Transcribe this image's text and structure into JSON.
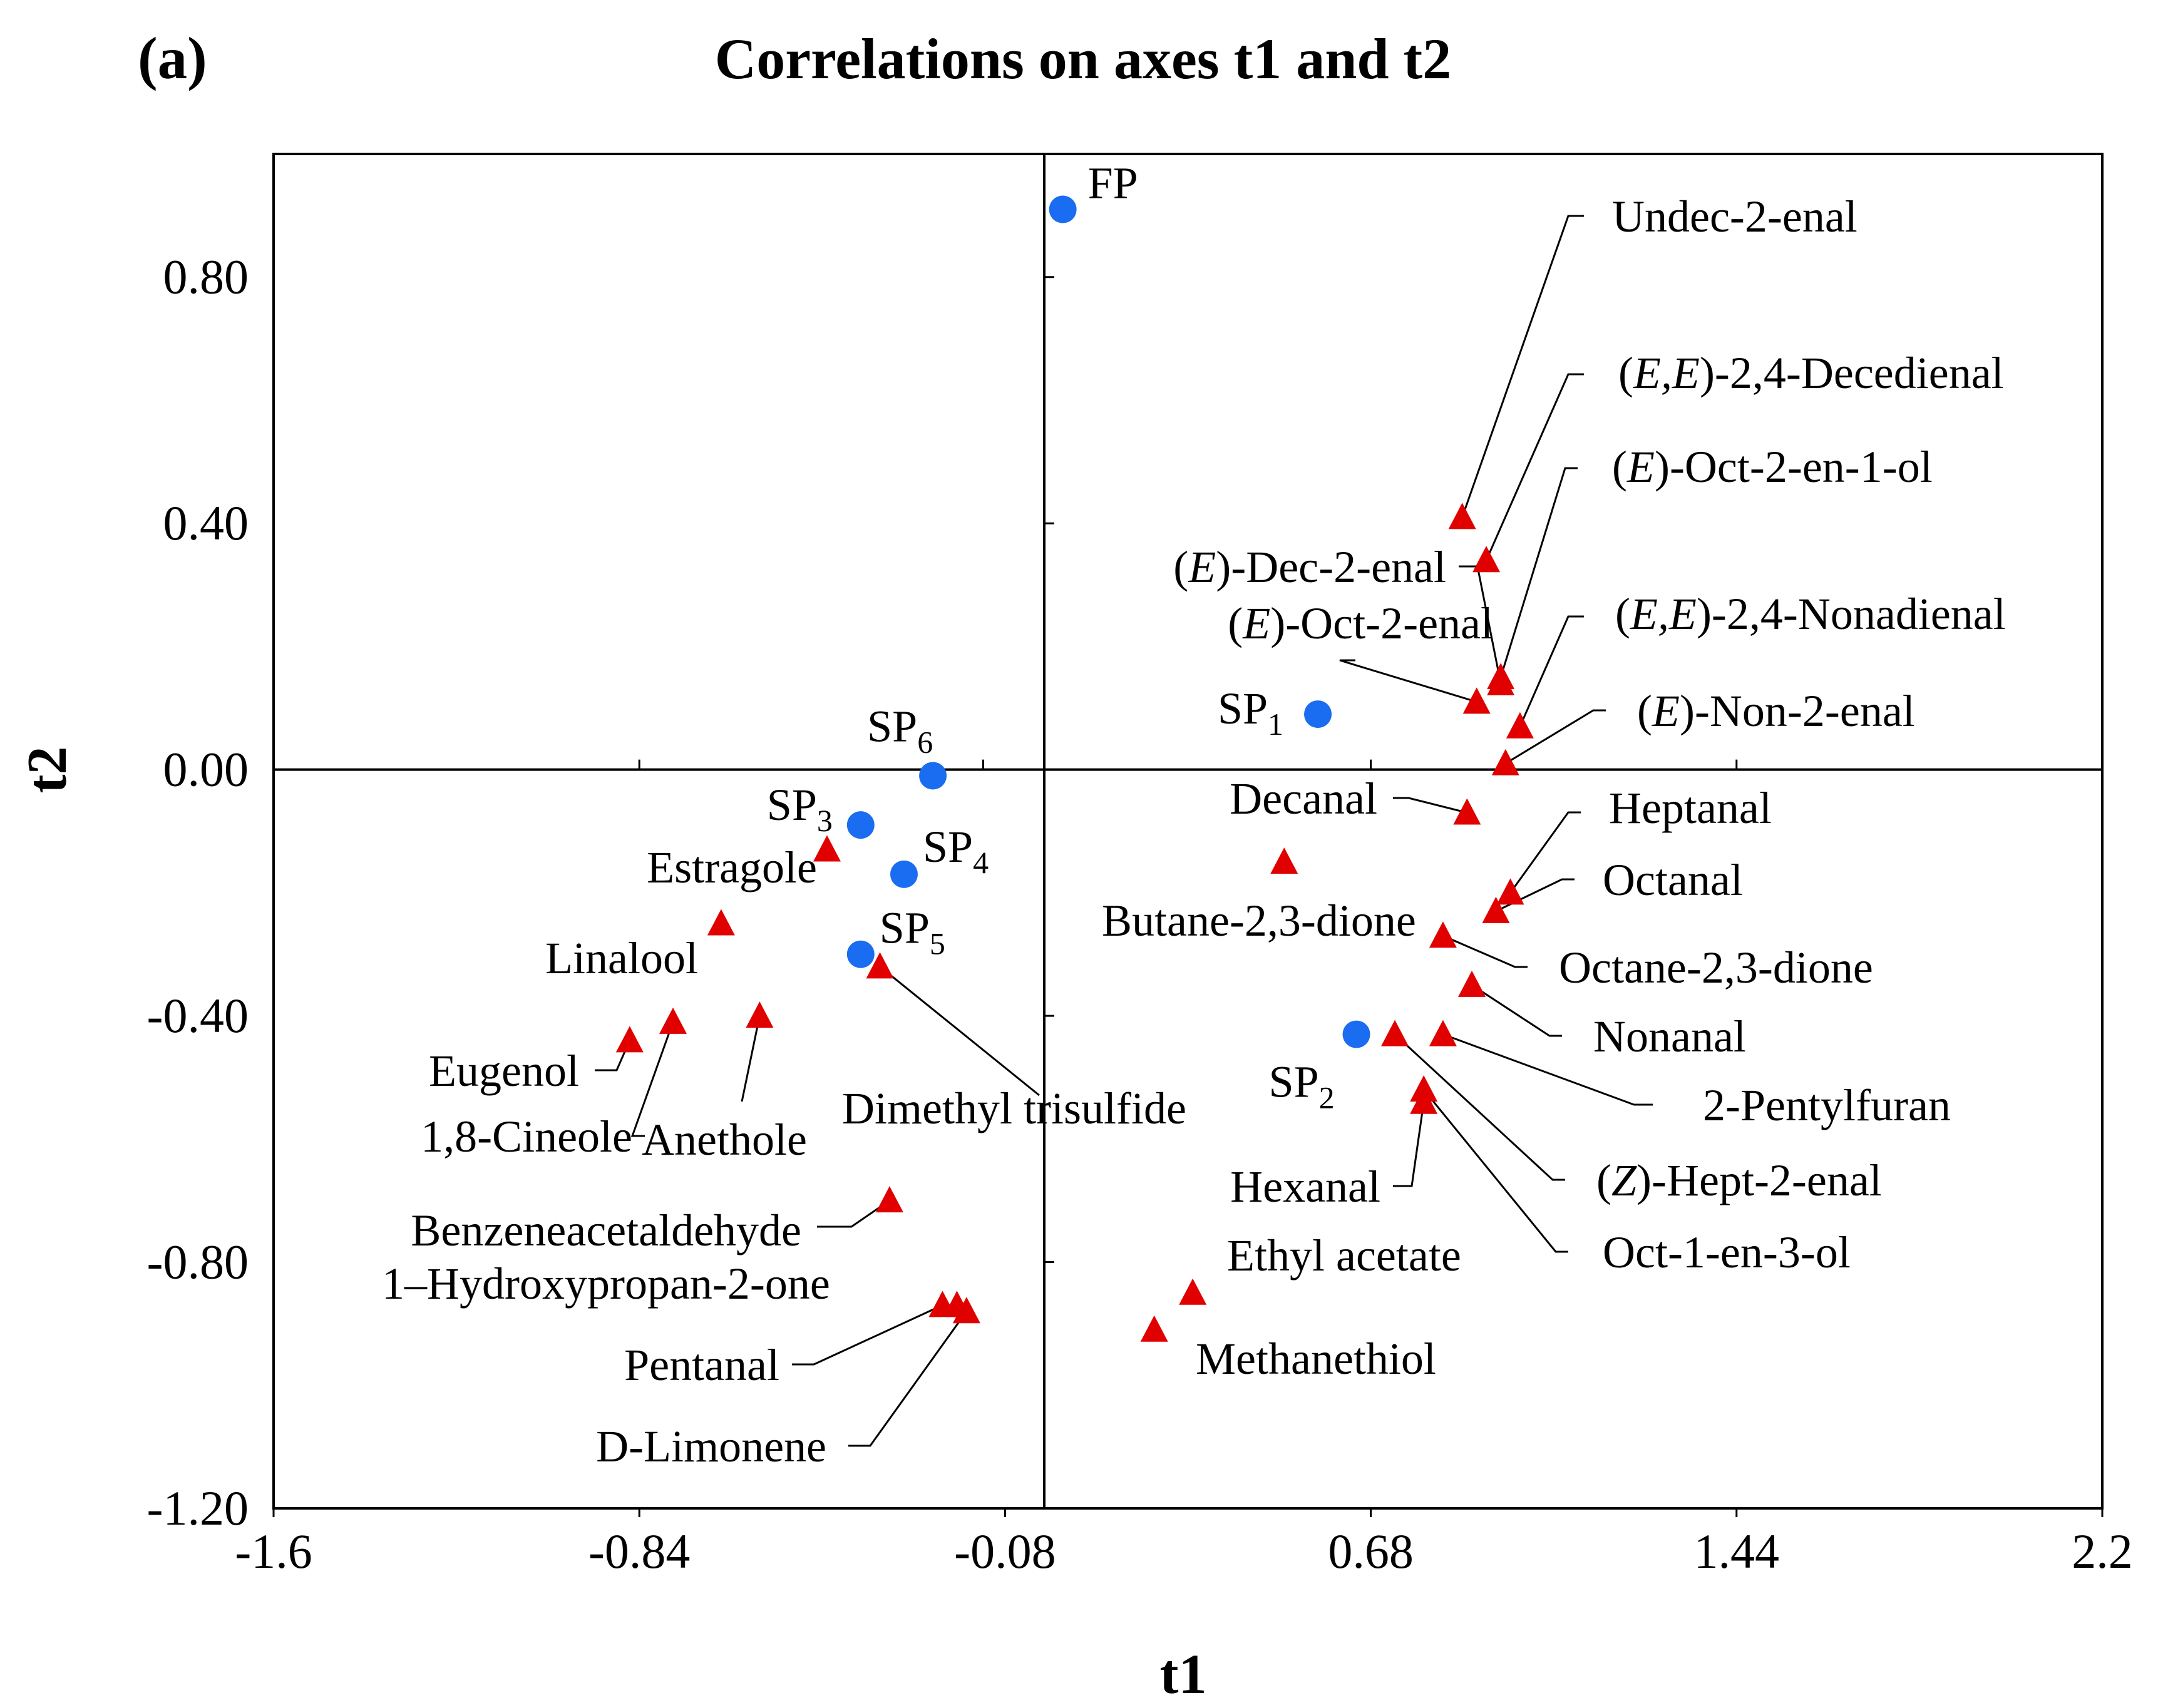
{
  "panel_label": "(a)",
  "chart_data": {
    "type": "scatter",
    "title": "Correlations on axes t1 and t2",
    "xlabel": "t1",
    "ylabel": "t2",
    "xlim": [
      -1.6,
      2.2
    ],
    "ylim": [
      -1.2,
      1.0
    ],
    "xticks": [
      -1.6,
      -0.84,
      -0.08,
      0.68,
      1.44,
      2.2
    ],
    "yticks": [
      0.8,
      0.4,
      0.0,
      -0.4,
      -0.8,
      -1.2
    ],
    "xtick_labels": [
      "-1.6",
      "-0.84",
      "-0.08",
      "0.68",
      "1.44",
      "2.2"
    ],
    "ytick_labels": [
      "0.80",
      "0.40",
      "0.00",
      "-0.40",
      "-0.80",
      "-1.20"
    ],
    "grid": false,
    "colors": {
      "samples": "#1a6cf0",
      "compounds": "#e00000"
    },
    "series": [
      {
        "name": "samples",
        "marker": "circle",
        "points": [
          {
            "label": "FP",
            "sub": "",
            "x": 0.04,
            "y": 0.91
          },
          {
            "label": "SP",
            "sub": "1",
            "x": 0.57,
            "y": 0.09
          },
          {
            "label": "SP",
            "sub": "2",
            "x": 0.65,
            "y": -0.43
          },
          {
            "label": "SP",
            "sub": "3",
            "x": -0.38,
            "y": -0.09
          },
          {
            "label": "SP",
            "sub": "4",
            "x": -0.29,
            "y": -0.17
          },
          {
            "label": "SP",
            "sub": "5",
            "x": -0.38,
            "y": -0.3
          },
          {
            "label": "SP",
            "sub": "6",
            "x": -0.23,
            "y": -0.01
          }
        ]
      },
      {
        "name": "compounds",
        "marker": "triangle",
        "points": [
          {
            "label": "Undec-2-enal",
            "x": 0.87,
            "y": 0.41
          },
          {
            "label": "(E,E)-2,4-Decedienal",
            "x": 0.92,
            "y": 0.34
          },
          {
            "label": "(E)-Oct-2-en-1-ol",
            "x": 0.95,
            "y": 0.15
          },
          {
            "label": "(E)-Dec-2-enal",
            "x": 0.95,
            "y": 0.14
          },
          {
            "label": "(E,E)-2,4-Nonadienal",
            "x": 0.99,
            "y": 0.07
          },
          {
            "label": "(E)-Oct-2-enal",
            "x": 0.9,
            "y": 0.11
          },
          {
            "label": "(E)-Non-2-enal",
            "x": 0.96,
            "y": 0.01
          },
          {
            "label": "Decanal",
            "x": 0.88,
            "y": -0.07
          },
          {
            "label": "Heptanal",
            "x": 0.97,
            "y": -0.2
          },
          {
            "label": "Octanal",
            "x": 0.94,
            "y": -0.23
          },
          {
            "label": "Butane-2,3-dione",
            "x": 0.5,
            "y": -0.15
          },
          {
            "label": "Octane-2,3-dione",
            "x": 0.83,
            "y": -0.27
          },
          {
            "label": "Nonanal",
            "x": 0.89,
            "y": -0.35
          },
          {
            "label": "2-Pentylfuran",
            "x": 0.83,
            "y": -0.43
          },
          {
            "label": "(Z)-Hept-2-enal",
            "x": 0.73,
            "y": -0.43
          },
          {
            "label": "Oct-1-en-3-ol",
            "x": 0.79,
            "y": -0.52
          },
          {
            "label": "Hexanal",
            "x": 0.79,
            "y": -0.54
          },
          {
            "label": "Ethyl acetate",
            "x": 0.31,
            "y": -0.85
          },
          {
            "label": "Methanethiol",
            "x": 0.23,
            "y": -0.91
          },
          {
            "label": "Estragole",
            "x": -0.45,
            "y": -0.13
          },
          {
            "label": "Linalool",
            "x": -0.67,
            "y": -0.25
          },
          {
            "label": "Dimethyl trisulfide",
            "x": -0.34,
            "y": -0.32
          },
          {
            "label": "Eugenol",
            "x": -0.86,
            "y": -0.44
          },
          {
            "label": "1,8-Cineole",
            "x": -0.77,
            "y": -0.41
          },
          {
            "label": "Anethole",
            "x": -0.59,
            "y": -0.4
          },
          {
            "label": "Benzeneacetaldehyde",
            "x": -0.32,
            "y": -0.7
          },
          {
            "label": "1–Hydroxypropan-2-one",
            "x": -0.18,
            "y": -0.87
          },
          {
            "label": "Pentanal",
            "x": -0.21,
            "y": -0.87
          },
          {
            "label": "D-Limonene",
            "x": -0.16,
            "y": -0.88
          }
        ]
      }
    ]
  }
}
